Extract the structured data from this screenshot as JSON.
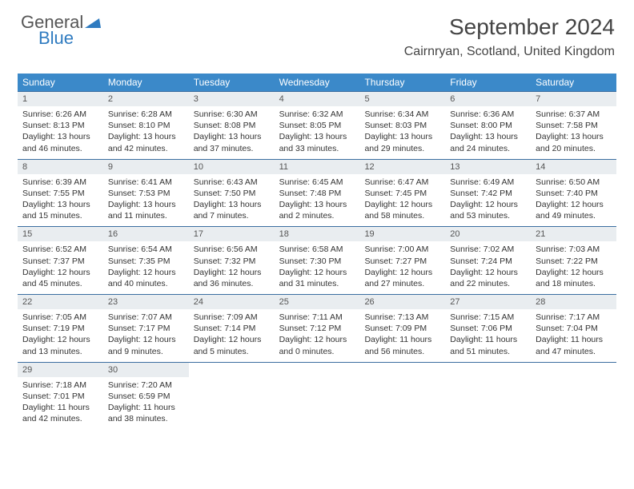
{
  "logo": {
    "top": "General",
    "bottom": "Blue"
  },
  "title": "September 2024",
  "subtitle": "Cairnryan, Scotland, United Kingdom",
  "colors": {
    "header_bg": "#3b89c9",
    "header_text": "#ffffff",
    "week_border": "#3b6ea0",
    "daynum_bg": "#e9edf0",
    "logo_blue": "#2f7bc0",
    "body_text": "#333333"
  },
  "typography": {
    "title_fontsize": 28,
    "subtitle_fontsize": 16,
    "header_fontsize": 12,
    "daynum_fontsize": 11,
    "body_fontsize": 10.5
  },
  "day_headers": [
    "Sunday",
    "Monday",
    "Tuesday",
    "Wednesday",
    "Thursday",
    "Friday",
    "Saturday"
  ],
  "weeks": [
    [
      {
        "n": "1",
        "sunrise": "Sunrise: 6:26 AM",
        "sunset": "Sunset: 8:13 PM",
        "daylight": "Daylight: 13 hours and 46 minutes."
      },
      {
        "n": "2",
        "sunrise": "Sunrise: 6:28 AM",
        "sunset": "Sunset: 8:10 PM",
        "daylight": "Daylight: 13 hours and 42 minutes."
      },
      {
        "n": "3",
        "sunrise": "Sunrise: 6:30 AM",
        "sunset": "Sunset: 8:08 PM",
        "daylight": "Daylight: 13 hours and 37 minutes."
      },
      {
        "n": "4",
        "sunrise": "Sunrise: 6:32 AM",
        "sunset": "Sunset: 8:05 PM",
        "daylight": "Daylight: 13 hours and 33 minutes."
      },
      {
        "n": "5",
        "sunrise": "Sunrise: 6:34 AM",
        "sunset": "Sunset: 8:03 PM",
        "daylight": "Daylight: 13 hours and 29 minutes."
      },
      {
        "n": "6",
        "sunrise": "Sunrise: 6:36 AM",
        "sunset": "Sunset: 8:00 PM",
        "daylight": "Daylight: 13 hours and 24 minutes."
      },
      {
        "n": "7",
        "sunrise": "Sunrise: 6:37 AM",
        "sunset": "Sunset: 7:58 PM",
        "daylight": "Daylight: 13 hours and 20 minutes."
      }
    ],
    [
      {
        "n": "8",
        "sunrise": "Sunrise: 6:39 AM",
        "sunset": "Sunset: 7:55 PM",
        "daylight": "Daylight: 13 hours and 15 minutes."
      },
      {
        "n": "9",
        "sunrise": "Sunrise: 6:41 AM",
        "sunset": "Sunset: 7:53 PM",
        "daylight": "Daylight: 13 hours and 11 minutes."
      },
      {
        "n": "10",
        "sunrise": "Sunrise: 6:43 AM",
        "sunset": "Sunset: 7:50 PM",
        "daylight": "Daylight: 13 hours and 7 minutes."
      },
      {
        "n": "11",
        "sunrise": "Sunrise: 6:45 AM",
        "sunset": "Sunset: 7:48 PM",
        "daylight": "Daylight: 13 hours and 2 minutes."
      },
      {
        "n": "12",
        "sunrise": "Sunrise: 6:47 AM",
        "sunset": "Sunset: 7:45 PM",
        "daylight": "Daylight: 12 hours and 58 minutes."
      },
      {
        "n": "13",
        "sunrise": "Sunrise: 6:49 AM",
        "sunset": "Sunset: 7:42 PM",
        "daylight": "Daylight: 12 hours and 53 minutes."
      },
      {
        "n": "14",
        "sunrise": "Sunrise: 6:50 AM",
        "sunset": "Sunset: 7:40 PM",
        "daylight": "Daylight: 12 hours and 49 minutes."
      }
    ],
    [
      {
        "n": "15",
        "sunrise": "Sunrise: 6:52 AM",
        "sunset": "Sunset: 7:37 PM",
        "daylight": "Daylight: 12 hours and 45 minutes."
      },
      {
        "n": "16",
        "sunrise": "Sunrise: 6:54 AM",
        "sunset": "Sunset: 7:35 PM",
        "daylight": "Daylight: 12 hours and 40 minutes."
      },
      {
        "n": "17",
        "sunrise": "Sunrise: 6:56 AM",
        "sunset": "Sunset: 7:32 PM",
        "daylight": "Daylight: 12 hours and 36 minutes."
      },
      {
        "n": "18",
        "sunrise": "Sunrise: 6:58 AM",
        "sunset": "Sunset: 7:30 PM",
        "daylight": "Daylight: 12 hours and 31 minutes."
      },
      {
        "n": "19",
        "sunrise": "Sunrise: 7:00 AM",
        "sunset": "Sunset: 7:27 PM",
        "daylight": "Daylight: 12 hours and 27 minutes."
      },
      {
        "n": "20",
        "sunrise": "Sunrise: 7:02 AM",
        "sunset": "Sunset: 7:24 PM",
        "daylight": "Daylight: 12 hours and 22 minutes."
      },
      {
        "n": "21",
        "sunrise": "Sunrise: 7:03 AM",
        "sunset": "Sunset: 7:22 PM",
        "daylight": "Daylight: 12 hours and 18 minutes."
      }
    ],
    [
      {
        "n": "22",
        "sunrise": "Sunrise: 7:05 AM",
        "sunset": "Sunset: 7:19 PM",
        "daylight": "Daylight: 12 hours and 13 minutes."
      },
      {
        "n": "23",
        "sunrise": "Sunrise: 7:07 AM",
        "sunset": "Sunset: 7:17 PM",
        "daylight": "Daylight: 12 hours and 9 minutes."
      },
      {
        "n": "24",
        "sunrise": "Sunrise: 7:09 AM",
        "sunset": "Sunset: 7:14 PM",
        "daylight": "Daylight: 12 hours and 5 minutes."
      },
      {
        "n": "25",
        "sunrise": "Sunrise: 7:11 AM",
        "sunset": "Sunset: 7:12 PM",
        "daylight": "Daylight: 12 hours and 0 minutes."
      },
      {
        "n": "26",
        "sunrise": "Sunrise: 7:13 AM",
        "sunset": "Sunset: 7:09 PM",
        "daylight": "Daylight: 11 hours and 56 minutes."
      },
      {
        "n": "27",
        "sunrise": "Sunrise: 7:15 AM",
        "sunset": "Sunset: 7:06 PM",
        "daylight": "Daylight: 11 hours and 51 minutes."
      },
      {
        "n": "28",
        "sunrise": "Sunrise: 7:17 AM",
        "sunset": "Sunset: 7:04 PM",
        "daylight": "Daylight: 11 hours and 47 minutes."
      }
    ],
    [
      {
        "n": "29",
        "sunrise": "Sunrise: 7:18 AM",
        "sunset": "Sunset: 7:01 PM",
        "daylight": "Daylight: 11 hours and 42 minutes."
      },
      {
        "n": "30",
        "sunrise": "Sunrise: 7:20 AM",
        "sunset": "Sunset: 6:59 PM",
        "daylight": "Daylight: 11 hours and 38 minutes."
      },
      {
        "empty": true
      },
      {
        "empty": true
      },
      {
        "empty": true
      },
      {
        "empty": true
      },
      {
        "empty": true
      }
    ]
  ]
}
